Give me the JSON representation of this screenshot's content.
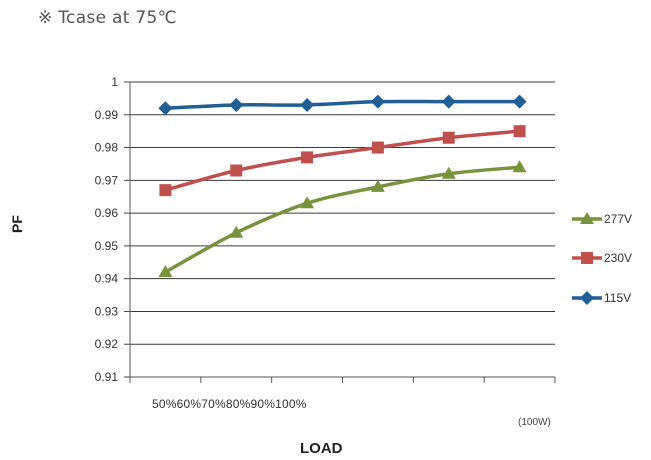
{
  "note": "※ Tcase at 75℃",
  "chart_data": {
    "type": "line",
    "title": "",
    "ylabel": "PF",
    "xlabel": "LOAD",
    "x_tick_text": "50%60%70%80%90%100%",
    "x_unit": "(100W)",
    "categories": [
      "50%",
      "60%",
      "70%",
      "80%",
      "90%",
      "100%"
    ],
    "ylim": [
      0.91,
      1
    ],
    "yticks": [
      "0.91",
      "0.92",
      "0.93",
      "0.94",
      "0.95",
      "0.96",
      "0.97",
      "0.98",
      "0.99",
      "1"
    ],
    "grid": true,
    "legend_position": "right",
    "series": [
      {
        "name": "277V",
        "color": "#77933C",
        "marker": "triangle",
        "values": [
          0.942,
          0.954,
          0.963,
          0.968,
          0.972,
          0.974
        ]
      },
      {
        "name": "230V",
        "color": "#C0504D",
        "marker": "square",
        "values": [
          0.967,
          0.973,
          0.977,
          0.98,
          0.983,
          0.985
        ]
      },
      {
        "name": "115V",
        "color": "#1F5F96",
        "marker": "diamond",
        "values": [
          0.992,
          0.993,
          0.993,
          0.994,
          0.994,
          0.994
        ]
      }
    ]
  }
}
